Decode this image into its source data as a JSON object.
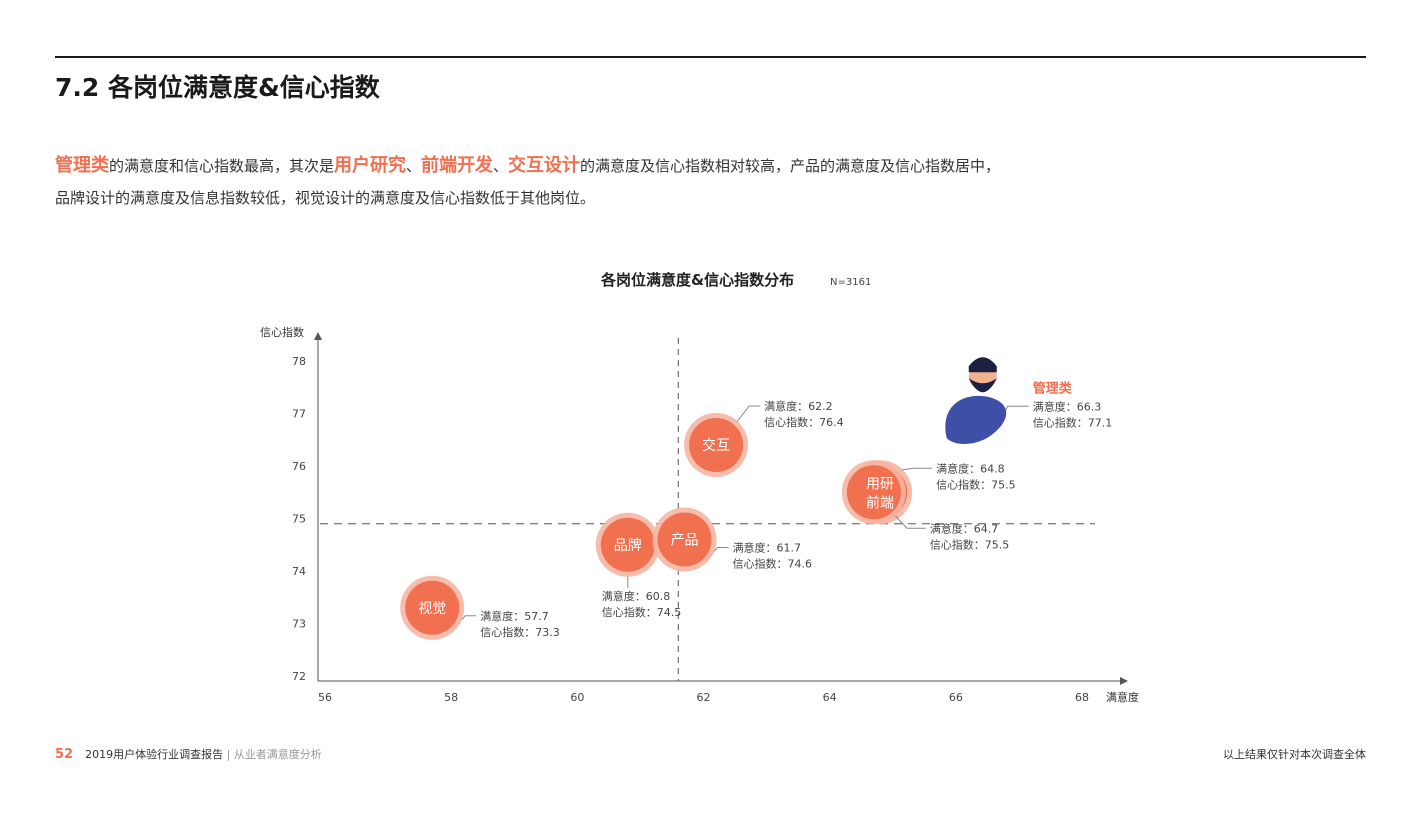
{
  "header": {
    "title": "7.2 各岗位满意度&信心指数"
  },
  "description": {
    "hl1": "管理类",
    "t1": "的满意度和信心指数最高，其次是",
    "hl2": "用户研究",
    "sep1": "、",
    "hl3": "前端开发",
    "sep2": "、",
    "hl4": "交互设计",
    "t2": "的满意度及信心指数相对较高，产品的满意度及信心指数居中，",
    "line2": "品牌设计的满意度及信息指数较低，视觉设计的满意度及信心指数低于其他岗位。"
  },
  "footer": {
    "page": "52",
    "report": "2019用户体验行业调查报告",
    "section": "| 从业者满意度分析",
    "note": "以上结果仅针对本次调查全体"
  },
  "chart_data": {
    "type": "scatter",
    "title": "各岗位满意度&信心指数分布",
    "subtitle": "N=3161",
    "xlabel": "满意度",
    "ylabel": "信心指数",
    "xlim": [
      56,
      68
    ],
    "ylim": [
      72,
      78
    ],
    "xticks": [
      "56",
      "58",
      "60",
      "62",
      "64",
      "66",
      "68"
    ],
    "yticks": [
      "72",
      "73",
      "74",
      "75",
      "76",
      "77",
      "78"
    ],
    "reference_lines": {
      "x": 61.6,
      "y": 74.9
    },
    "grid": false,
    "x_label_prefix": "满意度：",
    "y_label_prefix": "信心指数：",
    "points": [
      {
        "name": "视觉",
        "x": 57.7,
        "y": 73.3
      },
      {
        "name": "品牌",
        "x": 60.8,
        "y": 74.5
      },
      {
        "name": "产品",
        "x": 61.7,
        "y": 74.6
      },
      {
        "name": "交互",
        "x": 62.2,
        "y": 76.4
      },
      {
        "name": "用研",
        "x": 64.8,
        "y": 75.5
      },
      {
        "name": "前端",
        "x": 64.7,
        "y": 75.5
      },
      {
        "name": "管理类",
        "x": 66.3,
        "y": 77.1
      }
    ],
    "colors": {
      "bubble": "#f07050",
      "halo": "#f5b5a3",
      "accent": "#f07050",
      "avatar_shirt": "#3f4fa8"
    }
  }
}
